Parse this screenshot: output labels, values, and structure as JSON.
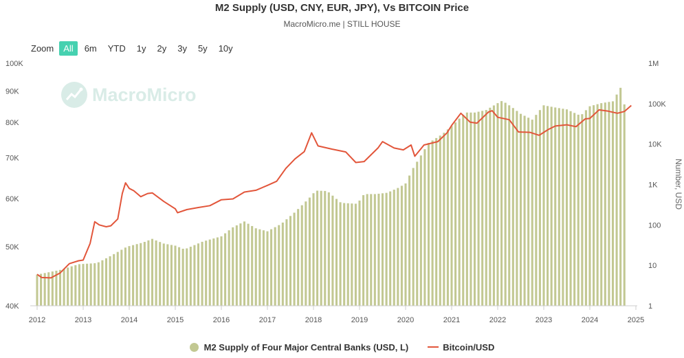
{
  "title": "M2 Supply (USD, CNY, EUR, JPY), Vs BITCOIN Price",
  "subtitle": "MacroMicro.me | STILL HOUSE",
  "zoom": {
    "label": "Zoom",
    "buttons": [
      "All",
      "6m",
      "YTD",
      "1y",
      "2y",
      "3y",
      "5y",
      "10y"
    ],
    "active": "All"
  },
  "watermark": "MacroMicro",
  "colors": {
    "bars": "#c2c892",
    "line": "#e2553a",
    "accent": "#46d1b0",
    "axis": "#888888"
  },
  "chart_data": {
    "type": "bar+line",
    "x_axis": {
      "ticks": [
        "2012",
        "2013",
        "2014",
        "2015",
        "2016",
        "2017",
        "2018",
        "2019",
        "2020",
        "2021",
        "2022",
        "2023",
        "2024",
        "2025"
      ]
    },
    "y_left": {
      "label": "",
      "min": 40000,
      "max": 100000,
      "scale": "log",
      "ticks": [
        "40K",
        "50K",
        "60K",
        "70K",
        "80K",
        "90K",
        "100K"
      ]
    },
    "y_right": {
      "label": "Number, USD",
      "min": 1,
      "max": 1000000,
      "scale": "log",
      "ticks": [
        "1",
        "10",
        "100",
        "1K",
        "10K",
        "100K",
        "1M"
      ]
    },
    "legend": [
      "M2 Supply of Four Major Central Banks (USD, L)",
      "Bitcoin/USD"
    ],
    "series": [
      {
        "name": "M2 Supply of Four Major Central Banks (USD, L)",
        "type": "bar",
        "axis": "left",
        "points": [
          [
            2012.0,
            45000
          ],
          [
            2012.5,
            45800
          ],
          [
            2012.9,
            46800
          ],
          [
            2013.3,
            47000
          ],
          [
            2013.6,
            48300
          ],
          [
            2013.95,
            50000
          ],
          [
            2014.3,
            50800
          ],
          [
            2014.5,
            51500
          ],
          [
            2014.75,
            50600
          ],
          [
            2015.0,
            50200
          ],
          [
            2015.2,
            49500
          ],
          [
            2015.6,
            51000
          ],
          [
            2016.0,
            52000
          ],
          [
            2016.25,
            53800
          ],
          [
            2016.5,
            55000
          ],
          [
            2016.75,
            53600
          ],
          [
            2017.0,
            53000
          ],
          [
            2017.3,
            54500
          ],
          [
            2017.6,
            57000
          ],
          [
            2017.9,
            60000
          ],
          [
            2018.05,
            61800
          ],
          [
            2018.3,
            61700
          ],
          [
            2018.6,
            59000
          ],
          [
            2018.95,
            58800
          ],
          [
            2019.1,
            61000
          ],
          [
            2019.35,
            61000
          ],
          [
            2019.6,
            61300
          ],
          [
            2019.85,
            62500
          ],
          [
            2020.0,
            63500
          ],
          [
            2020.15,
            67000
          ],
          [
            2020.5,
            74000
          ],
          [
            2020.8,
            76500
          ],
          [
            2021.05,
            79500
          ],
          [
            2021.3,
            83000
          ],
          [
            2021.5,
            83000
          ],
          [
            2021.75,
            83800
          ],
          [
            2022.0,
            86000
          ],
          [
            2022.1,
            86800
          ],
          [
            2022.3,
            84800
          ],
          [
            2022.5,
            82600
          ],
          [
            2022.75,
            80800
          ],
          [
            2023.0,
            85300
          ],
          [
            2023.25,
            84600
          ],
          [
            2023.5,
            84000
          ],
          [
            2023.8,
            82000
          ],
          [
            2024.0,
            85000
          ],
          [
            2024.25,
            86000
          ],
          [
            2024.5,
            86600
          ],
          [
            2024.68,
            91500
          ],
          [
            2024.75,
            85600
          ]
        ]
      },
      {
        "name": "Bitcoin/USD",
        "type": "line",
        "axis": "right",
        "points": [
          [
            2012.0,
            6
          ],
          [
            2012.1,
            5
          ],
          [
            2012.3,
            4.9
          ],
          [
            2012.5,
            6.5
          ],
          [
            2012.7,
            11
          ],
          [
            2012.9,
            13
          ],
          [
            2013.0,
            13.5
          ],
          [
            2013.15,
            35
          ],
          [
            2013.25,
            120
          ],
          [
            2013.35,
            100
          ],
          [
            2013.5,
            90
          ],
          [
            2013.6,
            95
          ],
          [
            2013.75,
            140
          ],
          [
            2013.85,
            600
          ],
          [
            2013.92,
            1100
          ],
          [
            2014.0,
            800
          ],
          [
            2014.1,
            700
          ],
          [
            2014.25,
            500
          ],
          [
            2014.4,
            600
          ],
          [
            2014.5,
            620
          ],
          [
            2014.75,
            380
          ],
          [
            2015.0,
            250
          ],
          [
            2015.05,
            200
          ],
          [
            2015.25,
            240
          ],
          [
            2015.5,
            270
          ],
          [
            2015.75,
            300
          ],
          [
            2016.0,
            420
          ],
          [
            2016.25,
            440
          ],
          [
            2016.5,
            650
          ],
          [
            2016.75,
            720
          ],
          [
            2017.0,
            950
          ],
          [
            2017.2,
            1200
          ],
          [
            2017.4,
            2500
          ],
          [
            2017.6,
            4300
          ],
          [
            2017.8,
            6500
          ],
          [
            2017.96,
            19000
          ],
          [
            2018.1,
            9000
          ],
          [
            2018.4,
            7500
          ],
          [
            2018.7,
            6400
          ],
          [
            2018.92,
            3500
          ],
          [
            2019.1,
            3700
          ],
          [
            2019.4,
            8000
          ],
          [
            2019.5,
            11500
          ],
          [
            2019.75,
            8000
          ],
          [
            2019.95,
            7200
          ],
          [
            2020.12,
            9500
          ],
          [
            2020.2,
            5000
          ],
          [
            2020.4,
            9500
          ],
          [
            2020.7,
            11500
          ],
          [
            2020.9,
            19000
          ],
          [
            2021.0,
            29000
          ],
          [
            2021.2,
            58000
          ],
          [
            2021.4,
            35000
          ],
          [
            2021.55,
            33000
          ],
          [
            2021.8,
            62000
          ],
          [
            2021.88,
            67000
          ],
          [
            2022.0,
            46000
          ],
          [
            2022.25,
            40000
          ],
          [
            2022.45,
            20000
          ],
          [
            2022.7,
            19500
          ],
          [
            2022.9,
            16500
          ],
          [
            2023.1,
            23000
          ],
          [
            2023.25,
            28000
          ],
          [
            2023.5,
            30000
          ],
          [
            2023.7,
            27000
          ],
          [
            2023.9,
            42000
          ],
          [
            2024.0,
            43000
          ],
          [
            2024.2,
            70000
          ],
          [
            2024.4,
            65000
          ],
          [
            2024.6,
            58000
          ],
          [
            2024.75,
            64000
          ],
          [
            2024.9,
            90000
          ]
        ]
      }
    ],
    "grid": false,
    "legend_position": "bottom-center"
  }
}
